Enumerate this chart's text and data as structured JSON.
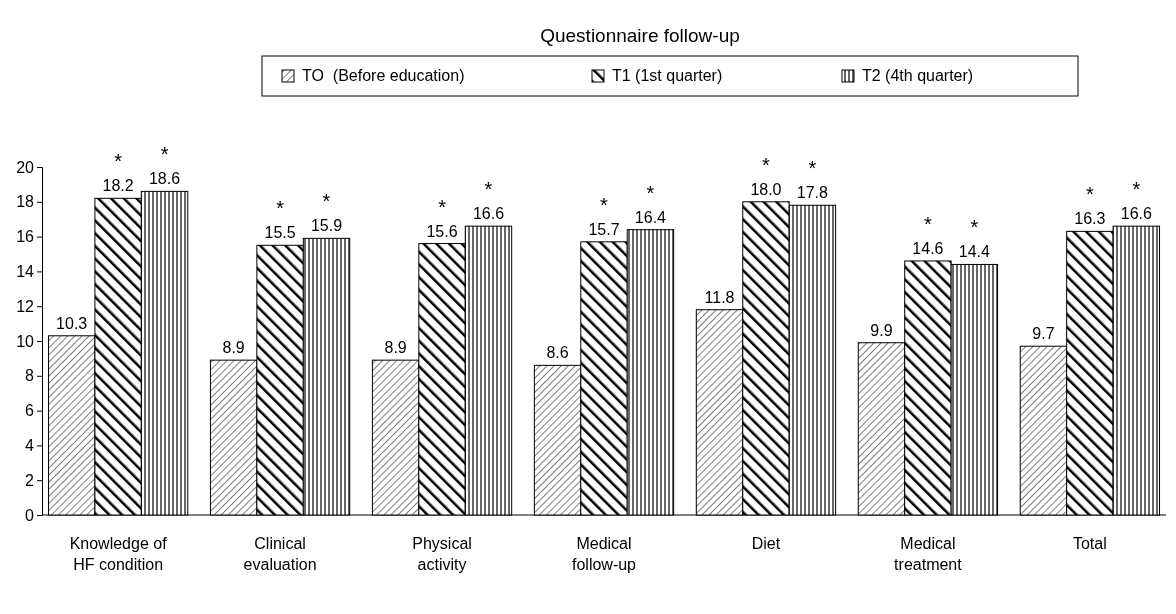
{
  "chart_data": {
    "type": "bar",
    "title": "Questionnaire follow-up",
    "categories": [
      "Knowledge of HF condition",
      "Clinical evaluation",
      "Physical activity",
      "Medical follow-up",
      "Diet",
      "Medical treatment",
      "Total"
    ],
    "series": [
      {
        "name": "TO  (Before education)",
        "color": "#000000",
        "values": [
          10.3,
          8.9,
          8.9,
          8.6,
          11.8,
          9.9,
          9.7
        ],
        "value_labels": [
          "10.3",
          "8.9",
          "8.9",
          "8.6",
          "11.8",
          "9.9",
          "9.7"
        ]
      },
      {
        "name": "T1 (1st quarter)",
        "color": "#000000",
        "values": [
          18.2,
          15.5,
          15.6,
          15.7,
          18.0,
          14.6,
          16.3
        ],
        "value_labels": [
          "18.2",
          "15.5",
          "15.6",
          "15.7",
          "18.0",
          "14.6",
          "16.3"
        ]
      },
      {
        "name": "T2 (4th quarter)",
        "color": "#000000",
        "values": [
          18.6,
          15.9,
          16.6,
          16.4,
          17.8,
          14.4,
          16.6
        ],
        "value_labels": [
          "18.6",
          "15.9",
          "16.6",
          "16.4",
          "17.8",
          "14.4",
          "16.6"
        ]
      }
    ],
    "ylim": [
      0,
      20
    ],
    "yticks": [
      0,
      2,
      4,
      6,
      8,
      10,
      12,
      14,
      16,
      18,
      20
    ],
    "grid": false,
    "legend": "top",
    "annotations": [
      "*",
      "*",
      "*",
      "*",
      "*",
      "*",
      "*",
      "*",
      "*",
      "*",
      "*",
      "*",
      "*",
      "*"
    ]
  }
}
